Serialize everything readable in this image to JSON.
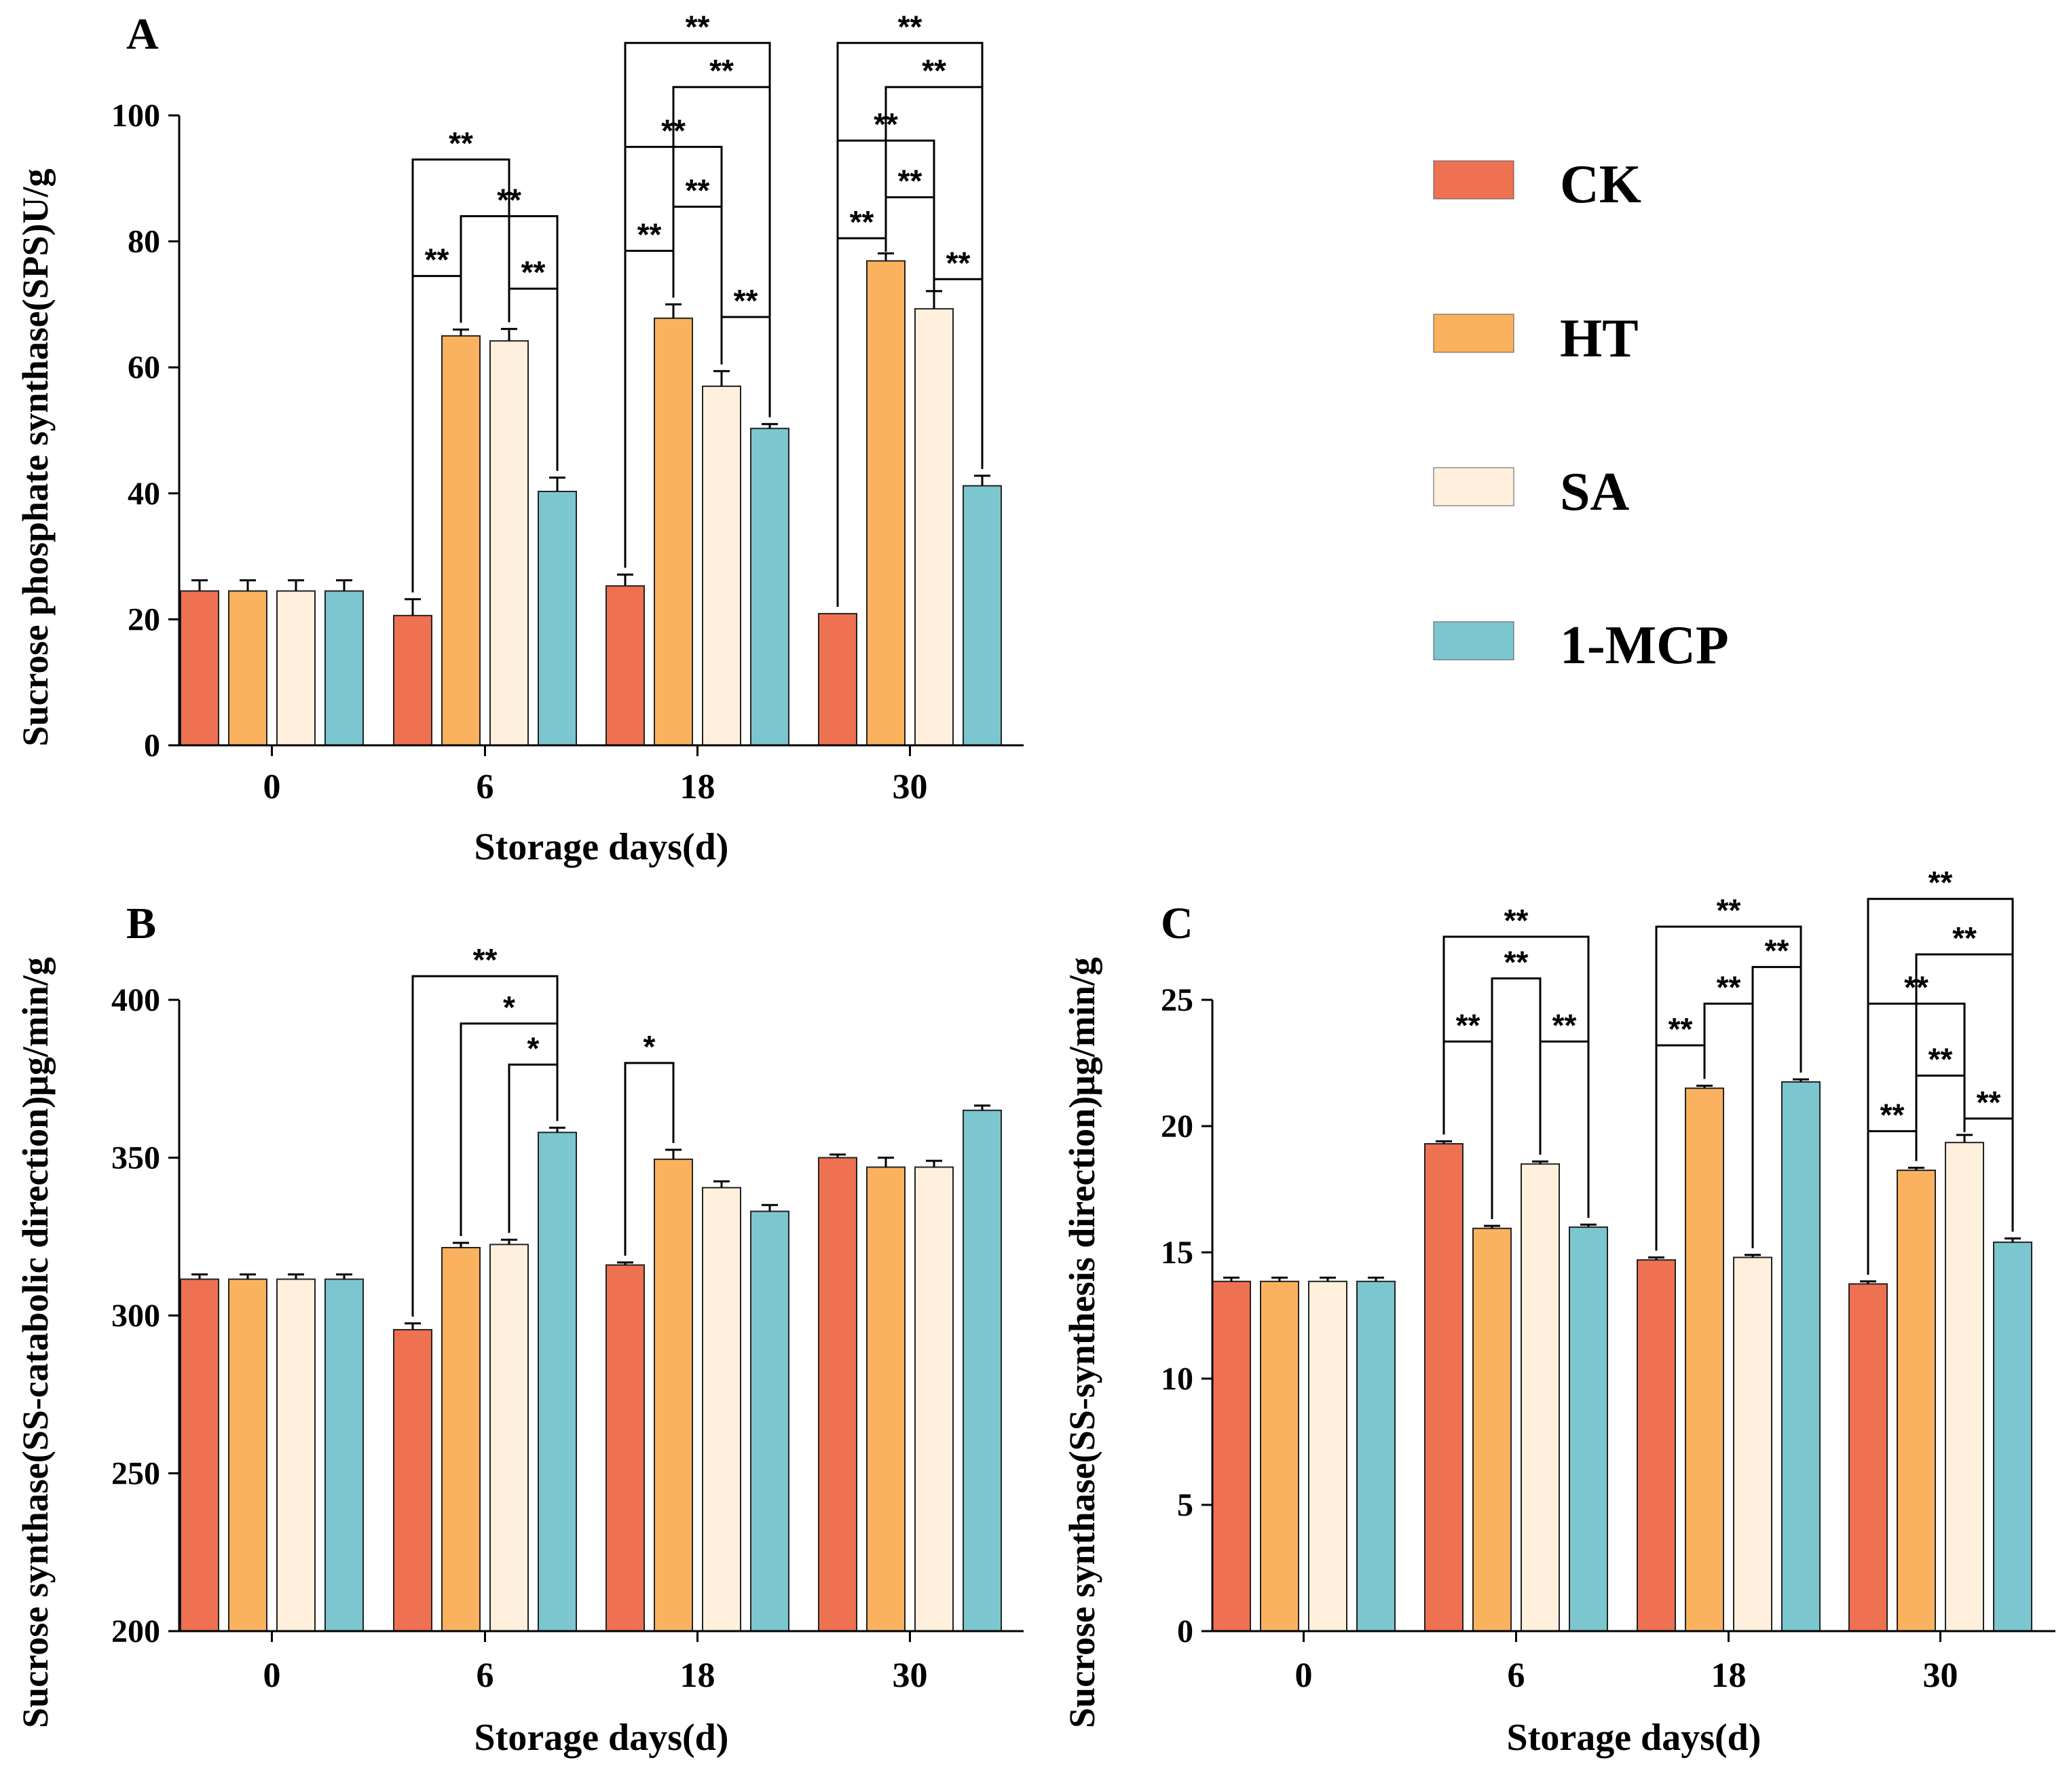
{
  "colors": {
    "CK": "#ee7152",
    "HT": "#fbb25f",
    "SA": "#fef0dc",
    "1-MCP": "#7cc6d0"
  },
  "legend": [
    "CK",
    "HT",
    "SA",
    "1-MCP"
  ],
  "chart_data": [
    {
      "panel": "A",
      "type": "bar",
      "xlabel": "Storage days(d)",
      "ylabel": "Sucrose phosphate synthase(SPS)U/g",
      "categories": [
        "0",
        "6",
        "18",
        "30"
      ],
      "ylim": [
        0,
        100
      ],
      "yticks": [
        "0",
        "20",
        "40",
        "60",
        "80",
        "100"
      ],
      "series": [
        {
          "name": "CK",
          "values": [
            24.5,
            20.6,
            25.3,
            20.9
          ],
          "errors": [
            1.7,
            2.6,
            1.8,
            0.0
          ]
        },
        {
          "name": "HT",
          "values": [
            24.5,
            65.0,
            67.8,
            76.9
          ],
          "errors": [
            1.7,
            1.0,
            2.2,
            1.2
          ]
        },
        {
          "name": "SA",
          "values": [
            24.5,
            64.2,
            57.0,
            69.3
          ],
          "errors": [
            1.7,
            1.9,
            2.4,
            2.8
          ]
        },
        {
          "name": "1-MCP",
          "values": [
            24.5,
            40.3,
            50.3,
            41.2
          ],
          "errors": [
            1.7,
            2.2,
            0.7,
            1.6
          ]
        }
      ],
      "annotations": [
        {
          "group": 1,
          "from": 0,
          "to": 1,
          "label": "**",
          "y": 74.5
        },
        {
          "group": 1,
          "from": 2,
          "to": 3,
          "label": "**",
          "y": 72.5
        },
        {
          "group": 1,
          "from": 1,
          "to": 3,
          "label": "**",
          "y": 84.0
        },
        {
          "group": 1,
          "from": 0,
          "to": 2,
          "label": "**",
          "y": 93.0
        },
        {
          "group": 2,
          "from": 0,
          "to": 1,
          "label": "**",
          "y": 78.5
        },
        {
          "group": 2,
          "from": 2,
          "to": 3,
          "label": "**",
          "y": 68.0
        },
        {
          "group": 2,
          "from": 1,
          "to": 2,
          "label": "**",
          "y": 85.5
        },
        {
          "group": 2,
          "from": 0,
          "to": 2,
          "label": "**",
          "y": 95.0
        },
        {
          "group": 2,
          "from": 1,
          "to": 3,
          "label": "**",
          "y": 104.5
        },
        {
          "group": 2,
          "from": 0,
          "to": 3,
          "label": "**",
          "y": 111.5
        },
        {
          "group": 3,
          "from": 0,
          "to": 1,
          "label": "**",
          "y": 80.5
        },
        {
          "group": 3,
          "from": 2,
          "to": 3,
          "label": "**",
          "y": 74.0
        },
        {
          "group": 3,
          "from": 1,
          "to": 2,
          "label": "**",
          "y": 87.0
        },
        {
          "group": 3,
          "from": 0,
          "to": 2,
          "label": "**",
          "y": 96.0
        },
        {
          "group": 3,
          "from": 1,
          "to": 3,
          "label": "**",
          "y": 104.5
        },
        {
          "group": 3,
          "from": 0,
          "to": 3,
          "label": "**",
          "y": 111.5
        }
      ]
    },
    {
      "panel": "B",
      "type": "bar",
      "xlabel": "Storage days(d)",
      "ylabel": "Sucrose  synthase(SS-catabolic direction)μg/min/g",
      "categories": [
        "0",
        "6",
        "18",
        "30"
      ],
      "ylim": [
        200,
        400
      ],
      "yticks": [
        "200",
        "250",
        "300",
        "350",
        "400"
      ],
      "series": [
        {
          "name": "CK",
          "values": [
            311.5,
            295.5,
            316.0,
            350.0
          ],
          "errors": [
            1.5,
            2.0,
            0.8,
            1.0
          ]
        },
        {
          "name": "HT",
          "values": [
            311.5,
            321.5,
            349.5,
            347.0
          ],
          "errors": [
            1.5,
            1.5,
            3.0,
            3.0
          ]
        },
        {
          "name": "SA",
          "values": [
            311.5,
            322.5,
            340.5,
            347.0
          ],
          "errors": [
            1.5,
            1.5,
            2.0,
            2.0
          ]
        },
        {
          "name": "1-MCP",
          "values": [
            311.5,
            358.0,
            333.0,
            365.0
          ],
          "errors": [
            1.5,
            1.5,
            2.0,
            1.5
          ]
        }
      ],
      "annotations": [
        {
          "group": 1,
          "from": 2,
          "to": 3,
          "label": "*",
          "y": 379.5
        },
        {
          "group": 1,
          "from": 1,
          "to": 3,
          "label": "*",
          "y": 392.5
        },
        {
          "group": 1,
          "from": 0,
          "to": 3,
          "label": "**",
          "y": 407.5
        },
        {
          "group": 2,
          "from": 0,
          "to": 1,
          "label": "*",
          "y": 380.0
        }
      ]
    },
    {
      "panel": "C",
      "type": "bar",
      "xlabel": "Storage days(d)",
      "ylabel": "Sucrose  synthase(SS-synthesis direction)μg/min/g",
      "categories": [
        "0",
        "6",
        "18",
        "30"
      ],
      "ylim": [
        0,
        25
      ],
      "yticks": [
        "0",
        "5",
        "10",
        "15",
        "20",
        "25"
      ],
      "series": [
        {
          "name": "CK",
          "values": [
            13.85,
            19.3,
            14.7,
            13.75
          ],
          "errors": [
            0.15,
            0.1,
            0.1,
            0.1
          ]
        },
        {
          "name": "HT",
          "values": [
            13.85,
            15.95,
            21.5,
            18.25
          ],
          "errors": [
            0.15,
            0.1,
            0.1,
            0.1
          ]
        },
        {
          "name": "SA",
          "values": [
            13.85,
            18.5,
            14.8,
            19.35
          ],
          "errors": [
            0.15,
            0.1,
            0.1,
            0.3
          ]
        },
        {
          "name": "1-MCP",
          "values": [
            13.85,
            16.0,
            21.75,
            15.4
          ],
          "errors": [
            0.15,
            0.1,
            0.1,
            0.15
          ]
        }
      ],
      "annotations": [
        {
          "group": 1,
          "from": 0,
          "to": 1,
          "label": "**",
          "y": 23.35
        },
        {
          "group": 1,
          "from": 2,
          "to": 3,
          "label": "**",
          "y": 23.35
        },
        {
          "group": 1,
          "from": 1,
          "to": 2,
          "label": "**",
          "y": 25.85
        },
        {
          "group": 1,
          "from": 0,
          "to": 3,
          "label": "**",
          "y": 27.5
        },
        {
          "group": 2,
          "from": 0,
          "to": 1,
          "label": "**",
          "y": 23.2
        },
        {
          "group": 2,
          "from": 1,
          "to": 2,
          "label": "**",
          "y": 24.85
        },
        {
          "group": 2,
          "from": 2,
          "to": 3,
          "label": "**",
          "y": 26.3
        },
        {
          "group": 2,
          "from": 0,
          "to": 3,
          "label": "**",
          "y": 27.9
        },
        {
          "group": 3,
          "from": 0,
          "to": 1,
          "label": "**",
          "y": 19.8
        },
        {
          "group": 3,
          "from": 2,
          "to": 3,
          "label": "**",
          "y": 20.3
        },
        {
          "group": 3,
          "from": 1,
          "to": 2,
          "label": "**",
          "y": 22.0
        },
        {
          "group": 3,
          "from": 0,
          "to": 2,
          "label": "**",
          "y": 24.85
        },
        {
          "group": 3,
          "from": 1,
          "to": 3,
          "label": "**",
          "y": 26.8
        },
        {
          "group": 3,
          "from": 0,
          "to": 3,
          "label": "**",
          "y": 29.0
        }
      ]
    }
  ]
}
